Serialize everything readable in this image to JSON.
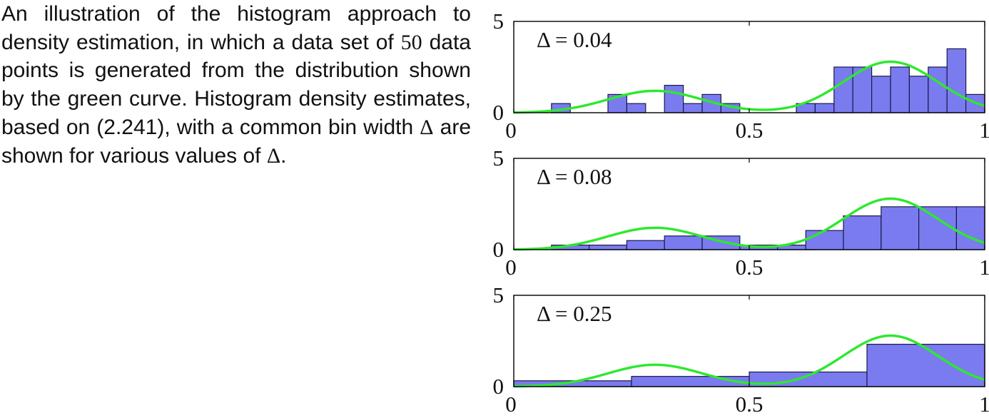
{
  "caption": {
    "part1": "An illustration of the histogram approach to density estimation, in which a data set of ",
    "n": "50",
    "part2": " data points is generated from the distribution shown by the green curve. Histogram density estimates, based on (2.241), with a common bin width ",
    "delta": "Δ",
    "part3": " are shown for various values of ",
    "delta2": "Δ",
    "part4": "."
  },
  "colors": {
    "bar_fill": "#7b7bf0",
    "bar_stroke": "#1a1a4a",
    "curve": "#2ee82e",
    "axis": "#000000"
  },
  "chart_data": [
    {
      "type": "bar",
      "title": "Δ = 0.04",
      "bin_width": 0.04,
      "xlim": [
        0,
        1
      ],
      "ylim": [
        0,
        5
      ],
      "xticks": [
        "0",
        "0.5",
        "1"
      ],
      "yticks": [
        "0",
        "5"
      ],
      "bins": [
        {
          "x": 0.08,
          "w": 0.04,
          "h": 0.5
        },
        {
          "x": 0.2,
          "w": 0.04,
          "h": 1.0
        },
        {
          "x": 0.24,
          "w": 0.04,
          "h": 0.5
        },
        {
          "x": 0.32,
          "w": 0.04,
          "h": 1.5
        },
        {
          "x": 0.36,
          "w": 0.04,
          "h": 0.5
        },
        {
          "x": 0.4,
          "w": 0.04,
          "h": 1.0
        },
        {
          "x": 0.44,
          "w": 0.04,
          "h": 0.5
        },
        {
          "x": 0.6,
          "w": 0.04,
          "h": 0.5
        },
        {
          "x": 0.64,
          "w": 0.04,
          "h": 0.5
        },
        {
          "x": 0.68,
          "w": 0.04,
          "h": 2.5
        },
        {
          "x": 0.72,
          "w": 0.04,
          "h": 2.5
        },
        {
          "x": 0.76,
          "w": 0.04,
          "h": 2.0
        },
        {
          "x": 0.8,
          "w": 0.04,
          "h": 2.5
        },
        {
          "x": 0.84,
          "w": 0.04,
          "h": 2.0
        },
        {
          "x": 0.88,
          "w": 0.04,
          "h": 2.5
        },
        {
          "x": 0.92,
          "w": 0.04,
          "h": 3.5
        },
        {
          "x": 0.96,
          "w": 0.04,
          "h": 1.0
        }
      ]
    },
    {
      "type": "bar",
      "title": "Δ = 0.08",
      "bin_width": 0.08,
      "xlim": [
        0,
        1
      ],
      "ylim": [
        0,
        5
      ],
      "xticks": [
        "0",
        "0.5",
        "1"
      ],
      "yticks": [
        "0",
        "5"
      ],
      "bins": [
        {
          "x": 0.08,
          "w": 0.08,
          "h": 0.25
        },
        {
          "x": 0.16,
          "w": 0.08,
          "h": 0.25
        },
        {
          "x": 0.24,
          "w": 0.08,
          "h": 0.5
        },
        {
          "x": 0.32,
          "w": 0.08,
          "h": 0.75
        },
        {
          "x": 0.4,
          "w": 0.08,
          "h": 0.75
        },
        {
          "x": 0.48,
          "w": 0.08,
          "h": 0.25
        },
        {
          "x": 0.56,
          "w": 0.08,
          "h": 0.25
        },
        {
          "x": 0.62,
          "w": 0.08,
          "h": 1.05
        },
        {
          "x": 0.7,
          "w": 0.08,
          "h": 1.85
        },
        {
          "x": 0.78,
          "w": 0.08,
          "h": 2.35
        },
        {
          "x": 0.86,
          "w": 0.08,
          "h": 2.35
        },
        {
          "x": 0.94,
          "w": 0.08,
          "h": 2.35
        }
      ]
    },
    {
      "type": "bar",
      "title": "Δ = 0.25",
      "bin_width": 0.25,
      "xlim": [
        0,
        1
      ],
      "ylim": [
        0,
        5
      ],
      "xticks": [
        "0",
        "0.5",
        "1"
      ],
      "yticks": [
        "0",
        "5"
      ],
      "bins": [
        {
          "x": 0.0,
          "w": 0.25,
          "h": 0.32
        },
        {
          "x": 0.25,
          "w": 0.25,
          "h": 0.56
        },
        {
          "x": 0.5,
          "w": 0.25,
          "h": 0.8
        },
        {
          "x": 0.75,
          "w": 0.25,
          "h": 2.32
        }
      ]
    }
  ],
  "true_density": {
    "label": "green curve",
    "components": [
      {
        "weight": 0.3,
        "mean": 0.3,
        "sd": 0.1
      },
      {
        "weight": 0.7,
        "mean": 0.8,
        "sd": 0.1
      }
    ]
  }
}
